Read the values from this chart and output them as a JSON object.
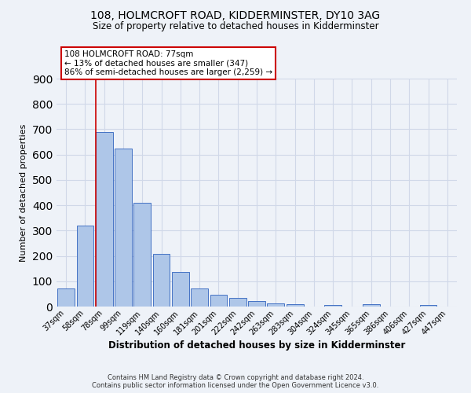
{
  "title": "108, HOLMCROFT ROAD, KIDDERMINSTER, DY10 3AG",
  "subtitle": "Size of property relative to detached houses in Kidderminster",
  "xlabel": "Distribution of detached houses by size in Kidderminster",
  "ylabel": "Number of detached properties",
  "bar_labels": [
    "37sqm",
    "58sqm",
    "78sqm",
    "99sqm",
    "119sqm",
    "140sqm",
    "160sqm",
    "181sqm",
    "201sqm",
    "222sqm",
    "242sqm",
    "263sqm",
    "283sqm",
    "304sqm",
    "324sqm",
    "345sqm",
    "365sqm",
    "386sqm",
    "406sqm",
    "427sqm",
    "447sqm"
  ],
  "bar_values": [
    72,
    320,
    688,
    625,
    410,
    207,
    138,
    70,
    48,
    35,
    23,
    11,
    8,
    0,
    5,
    0,
    8,
    0,
    0,
    7,
    0
  ],
  "bar_color": "#aec6e8",
  "bar_edge_color": "#4472c4",
  "vline_color": "#cc0000",
  "vline_index": 2,
  "ylim": [
    0,
    900
  ],
  "yticks": [
    0,
    100,
    200,
    300,
    400,
    500,
    600,
    700,
    800,
    900
  ],
  "annotation_title": "108 HOLMCROFT ROAD: 77sqm",
  "annotation_line2": "← 13% of detached houses are smaller (347)",
  "annotation_line3": "86% of semi-detached houses are larger (2,259) →",
  "annotation_box_color": "#ffffff",
  "annotation_box_edge": "#cc0000",
  "grid_color": "#d0d8e8",
  "background_color": "#eef2f8",
  "footer1": "Contains HM Land Registry data © Crown copyright and database right 2024.",
  "footer2": "Contains public sector information licensed under the Open Government Licence v3.0."
}
